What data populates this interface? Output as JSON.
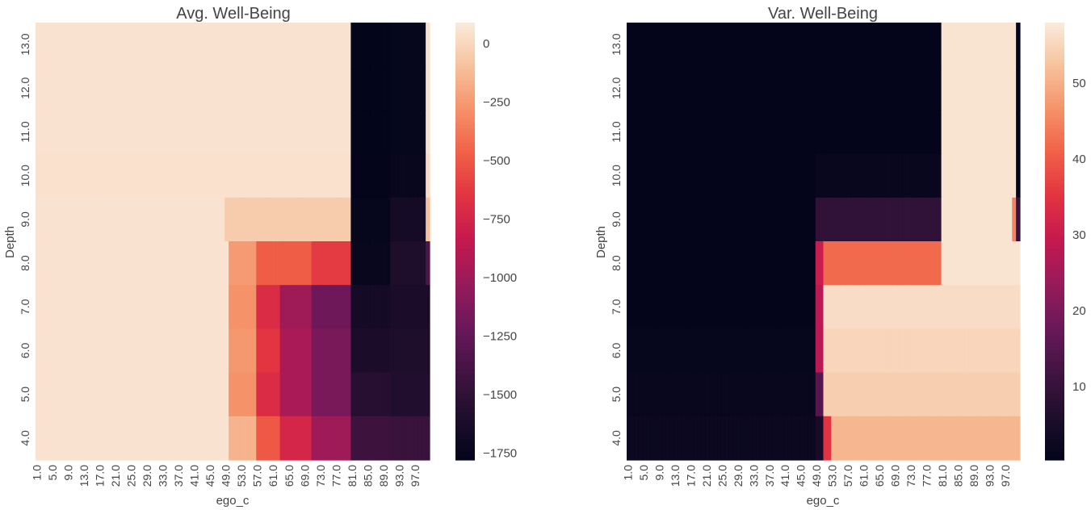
{
  "chart_data": [
    {
      "type": "heatmap",
      "title": "Avg. Well-Being",
      "xlabel": "ego_c",
      "ylabel": "Depth",
      "x_tick_labels": [
        "1.0",
        "5.0",
        "9.0",
        "13.0",
        "17.0",
        "21.0",
        "25.0",
        "29.0",
        "33.0",
        "37.0",
        "41.0",
        "45.0",
        "49.0",
        "53.0",
        "57.0",
        "61.0",
        "65.0",
        "69.0",
        "73.0",
        "77.0",
        "81.0",
        "85.0",
        "89.0",
        "93.0",
        "97.0"
      ],
      "y_tick_labels": [
        "13.0",
        "12.0",
        "11.0",
        "10.0",
        "9.0",
        "8.0",
        "7.0",
        "6.0",
        "5.0",
        "4.0"
      ],
      "columns": "ego_c = 1..100 (step 1)",
      "row_profiles": [
        {
          "depth": 13.0,
          "values": {
            "1-80": 50,
            "81-90": -1780,
            "91-99": -1760,
            "100": 40
          }
        },
        {
          "depth": 12.0,
          "values": {
            "1-80": 50,
            "81-90": -1780,
            "91-99": -1760,
            "100": 40
          }
        },
        {
          "depth": 11.0,
          "values": {
            "1-80": 50,
            "81-90": -1780,
            "91-99": -1760,
            "100": 40
          }
        },
        {
          "depth": 10.0,
          "values": {
            "1-80": 45,
            "81-90": -1770,
            "91-99": -1740,
            "100": 20
          }
        },
        {
          "depth": 9.0,
          "values": {
            "1-48": 50,
            "49-80": -50,
            "81-90": -1760,
            "91-99": -1650,
            "100": -100
          }
        },
        {
          "depth": 8.0,
          "values": {
            "1-49": 50,
            "50-56": -250,
            "57-70": -480,
            "71-80": -620,
            "81-90": -1740,
            "91-99": -1600,
            "100": -1350
          }
        },
        {
          "depth": 7.0,
          "values": {
            "1-49": 50,
            "50-56": -280,
            "57-62": -700,
            "63-70": -1000,
            "71-80": -1200,
            "81-90": -1660,
            "91-100": -1620
          }
        },
        {
          "depth": 6.0,
          "values": {
            "1-49": 50,
            "50-56": -260,
            "57-62": -650,
            "63-70": -950,
            "71-80": -1150,
            "81-90": -1620,
            "91-100": -1600
          }
        },
        {
          "depth": 5.0,
          "values": {
            "1-49": 50,
            "50-56": -280,
            "57-62": -700,
            "63-70": -950,
            "71-80": -1150,
            "81-90": -1550,
            "91-100": -1580
          }
        },
        {
          "depth": 4.0,
          "values": {
            "1-49": 50,
            "50-56": -150,
            "57-62": -500,
            "63-70": -750,
            "71-80": -1000,
            "81-90": -1430,
            "91-100": -1450
          }
        }
      ],
      "colorbar": {
        "min": -1780,
        "max": 90,
        "ticks": [
          "0",
          "−250",
          "−500",
          "−750",
          "−1000",
          "−1250",
          "−1500",
          "−1750"
        ],
        "tick_values": [
          0,
          -250,
          -500,
          -750,
          -1000,
          -1250,
          -1500,
          -1750
        ]
      }
    },
    {
      "type": "heatmap",
      "title": "Var. Well-Being",
      "xlabel": "ego_c",
      "ylabel": "Depth",
      "x_tick_labels": [
        "1.0",
        "5.0",
        "9.0",
        "13.0",
        "17.0",
        "21.0",
        "25.0",
        "29.0",
        "33.0",
        "37.0",
        "41.0",
        "45.0",
        "49.0",
        "53.0",
        "57.0",
        "61.0",
        "65.0",
        "69.0",
        "73.0",
        "77.0",
        "81.0",
        "85.0",
        "89.0",
        "93.0",
        "97.0"
      ],
      "y_tick_labels": [
        "13.0",
        "12.0",
        "11.0",
        "10.0",
        "9.0",
        "8.0",
        "7.0",
        "6.0",
        "5.0",
        "4.0"
      ],
      "columns": "ego_c = 1..100 (step 1)",
      "row_profiles": [
        {
          "depth": 13.0,
          "values": {
            "1-80": 0.5,
            "81-99": 57,
            "100": 0.5
          }
        },
        {
          "depth": 12.0,
          "values": {
            "1-80": 0.5,
            "81-99": 57,
            "100": 0.5
          }
        },
        {
          "depth": 11.0,
          "values": {
            "1-80": 0.5,
            "81-99": 57,
            "100": 0.5
          }
        },
        {
          "depth": 10.0,
          "values": {
            "1-48": 0.5,
            "49-80": 1.5,
            "81-99": 57,
            "100": 0.5
          }
        },
        {
          "depth": 9.0,
          "values": {
            "1-48": 0.5,
            "49-80": 9,
            "81-98": 57,
            "99": 45,
            "100": 10
          }
        },
        {
          "depth": 8.0,
          "values": {
            "1-48": 0.5,
            "49-50": 30,
            "51-80": 42,
            "81-100": 57
          }
        },
        {
          "depth": 7.0,
          "values": {
            "1-48": 0.5,
            "49-50": 28,
            "51-100": 56
          }
        },
        {
          "depth": 6.0,
          "values": {
            "1-48": 1,
            "49-50": 28,
            "51-100": 55
          }
        },
        {
          "depth": 5.0,
          "values": {
            "1-48": 1.5,
            "49-50": 15,
            "51-100": 54
          }
        },
        {
          "depth": 4.0,
          "values": {
            "1-48": 2,
            "49-50": 5,
            "51-52": 35,
            "53-100": 51
          }
        }
      ],
      "colorbar": {
        "min": 0.3,
        "max": 58,
        "ticks": [
          "10",
          "20",
          "30",
          "40",
          "50"
        ],
        "tick_values": [
          10,
          20,
          30,
          40,
          50
        ]
      }
    }
  ]
}
